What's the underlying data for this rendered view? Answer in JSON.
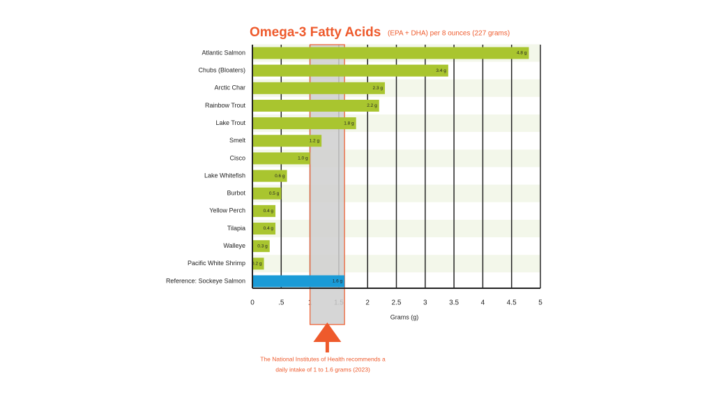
{
  "chart_data": {
    "type": "hbar",
    "title": "Omega-3 Fatty Acids",
    "subtitle": "(EPA + DHA) per 8 ounces (227 grams)",
    "x_label": "Grams (g)",
    "categories": [
      "Atlantic Salmon",
      "Chubs (Bloaters)",
      "Arctic Char",
      "Rainbow Trout",
      "Lake Trout",
      "Smelt",
      "Cisco",
      "Lake Whitefish",
      "Burbot",
      "Yellow Perch",
      "Tilapia",
      "Walleye",
      "Pacific White Shrimp"
    ],
    "values": [
      4.8,
      3.4,
      2.3,
      2.2,
      1.8,
      1.2,
      1.0,
      0.6,
      0.5,
      0.4,
      0.4,
      0.3,
      0.2
    ],
    "value_labels": [
      "4.8 g",
      "3.4 g",
      "2.3 g",
      "2.2 g",
      "1.8  g",
      "1.2 g",
      "1.0 g",
      "0.6 g",
      "0.5 g",
      "0.4 g",
      "0.4 g",
      "0.3 g",
      "0.2 g"
    ],
    "color": "#a9c52f",
    "reference": {
      "label": "Reference: Sockeye Salmon",
      "value": 1.6,
      "value_label": "1.6 g",
      "color": "#1a9bd7"
    },
    "recommended_range": [
      1,
      1.6
    ],
    "annotation": [
      "The National Institutes of Health recommends a",
      "daily intake of 1 to 1.6 grams (2023)"
    ],
    "xlim": [
      0,
      5
    ],
    "xticks": [
      0,
      {
        "value": 0.5,
        "label": ".5"
      },
      1,
      1.5,
      2,
      2.5,
      3,
      3.5,
      4,
      4.5,
      5
    ],
    "grid": true
  }
}
